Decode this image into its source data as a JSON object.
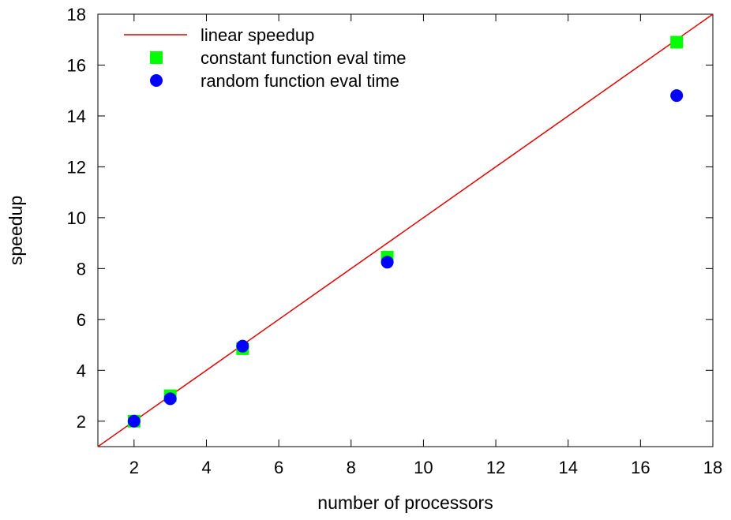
{
  "chart_data": {
    "type": "scatter",
    "title": "",
    "xlabel": "number of processors",
    "ylabel": "speedup",
    "xlim": [
      1,
      18
    ],
    "ylim": [
      1,
      18
    ],
    "x_ticks": [
      2,
      4,
      6,
      8,
      10,
      12,
      14,
      16,
      18
    ],
    "y_ticks": [
      2,
      4,
      6,
      8,
      10,
      12,
      14,
      16,
      18
    ],
    "grid": false,
    "legend_position": "top-left",
    "series": [
      {
        "name": "linear speedup",
        "kind": "line",
        "color": "#e00000",
        "x": [
          1,
          18
        ],
        "y": [
          1,
          18
        ]
      },
      {
        "name": "constant function eval time",
        "kind": "square",
        "color": "#00ff00",
        "x": [
          2,
          3,
          5,
          9,
          17
        ],
        "y": [
          2.0,
          3.0,
          4.85,
          8.45,
          16.9
        ]
      },
      {
        "name": "random function eval time",
        "kind": "circle",
        "color": "#0000ff",
        "x": [
          2,
          3,
          5,
          9,
          17
        ],
        "y": [
          2.0,
          2.88,
          4.95,
          8.25,
          14.8
        ]
      }
    ]
  }
}
